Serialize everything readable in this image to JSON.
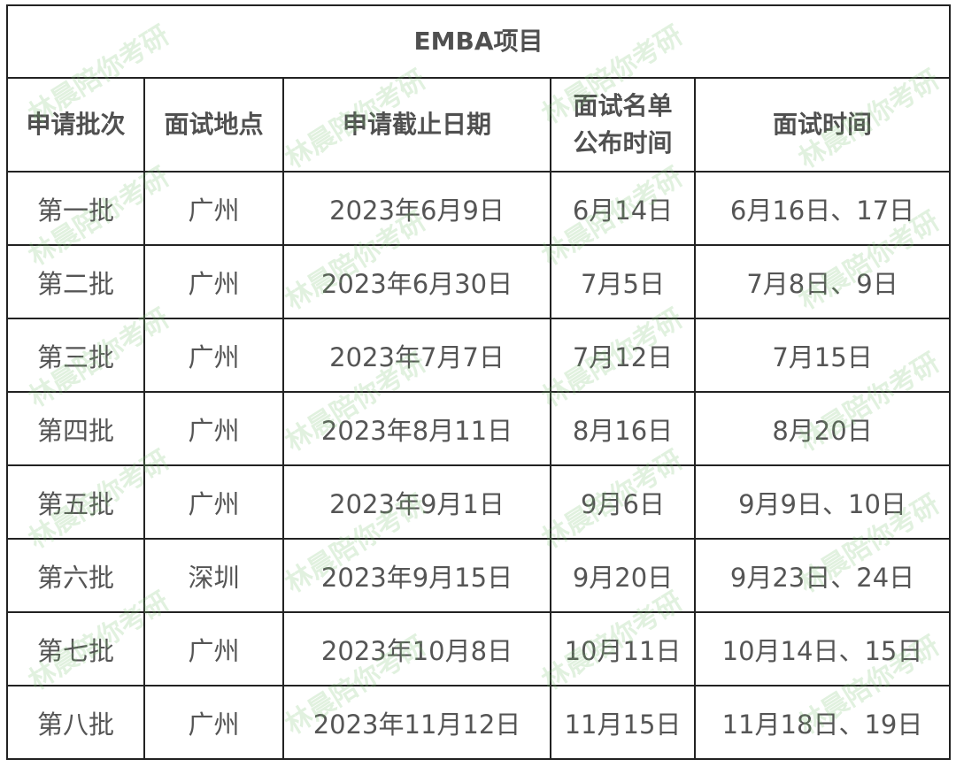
{
  "title": "EMBA项目",
  "headers": [
    "申请批次",
    "面试地点",
    "申请截止日期",
    "面试名单公布时间",
    "面试时间"
  ],
  "rows": [
    [
      "第一批",
      "广州",
      "2023年6月9日",
      "6月14日",
      "6月16日、17日"
    ],
    [
      "第二批",
      "广州",
      "2023年6月30日",
      "7月5日",
      "7月8日、9日"
    ],
    [
      "第三批",
      "广州",
      "2023年7月7日",
      "7月12日",
      "7月15日"
    ],
    [
      "第四批",
      "广州",
      "2023年8月11日",
      "8月16日",
      "8月20日"
    ],
    [
      "第五批",
      "广州",
      "2023年9月1日",
      "9月6日",
      "9月9日、10日"
    ],
    [
      "第六批",
      "深圳",
      "2023年9月15日",
      "9月20日",
      "9月23日、24日"
    ],
    [
      "第七批",
      "广州",
      "2023年10月8日",
      "10月11日",
      "10月14日、15日"
    ],
    [
      "第八批",
      "广州",
      "2023年11月12日",
      "11月15日",
      "11月18日、19日"
    ]
  ],
  "watermark": "林晨陪你考研",
  "colors": {
    "border": "#222222",
    "text": "#555555",
    "watermark": "#78be6e"
  }
}
